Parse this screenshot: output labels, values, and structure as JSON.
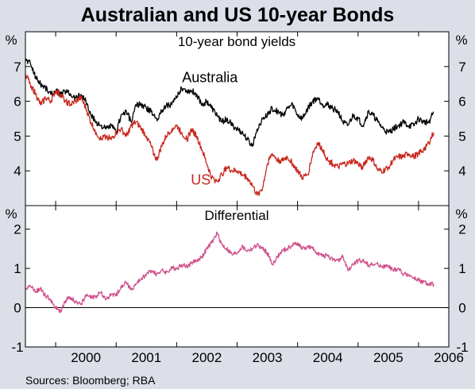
{
  "chart_data": {
    "type": "line",
    "title": "Australian and US 10-year Bonds",
    "source": "Sources: Bloomberg; RBA",
    "x_tick_labels": [
      "2000",
      "2001",
      "2002",
      "2003",
      "2004",
      "2005",
      "2006"
    ],
    "x_range": [
      1999.5,
      2006.5
    ],
    "colors": {
      "australia": "#000000",
      "us": "#c8281e",
      "differential": "#d0508c",
      "frame": "#000000",
      "background": "#ffffff"
    },
    "panels": [
      {
        "title": "10-year bond yields",
        "unit_left": "%",
        "unit_right": "%",
        "ylim": [
          3,
          8
        ],
        "y_ticks": [
          4,
          5,
          6,
          7
        ],
        "series": [
          {
            "name": "Australia",
            "color": "#000000",
            "x": [
              1999.5,
              1999.58,
              1999.67,
              1999.75,
              1999.83,
              1999.92,
              2000.0,
              2000.08,
              2000.17,
              2000.25,
              2000.33,
              2000.42,
              2000.5,
              2000.58,
              2000.67,
              2000.75,
              2000.83,
              2000.92,
              2001.0,
              2001.08,
              2001.17,
              2001.25,
              2001.33,
              2001.42,
              2001.5,
              2001.58,
              2001.67,
              2001.75,
              2001.83,
              2001.92,
              2002.0,
              2002.08,
              2002.17,
              2002.25,
              2002.33,
              2002.42,
              2002.5,
              2002.58,
              2002.67,
              2002.75,
              2002.83,
              2002.92,
              2003.0,
              2003.08,
              2003.17,
              2003.25,
              2003.33,
              2003.42,
              2003.5,
              2003.58,
              2003.67,
              2003.75,
              2003.83,
              2003.92,
              2004.0,
              2004.08,
              2004.17,
              2004.25,
              2004.33,
              2004.42,
              2004.5,
              2004.58,
              2004.67,
              2004.75,
              2004.83,
              2004.92,
              2005.0,
              2005.08,
              2005.17,
              2005.25,
              2005.33,
              2005.42,
              2005.5,
              2005.58,
              2005.67,
              2005.75,
              2005.83,
              2005.92,
              2006.0,
              2006.08,
              2006.17,
              2006.25
            ],
            "y": [
              7.2,
              7.1,
              6.7,
              6.5,
              6.4,
              6.2,
              6.3,
              6.2,
              6.3,
              6.2,
              6.1,
              6.2,
              6.0,
              5.6,
              5.4,
              5.3,
              5.2,
              5.3,
              5.1,
              5.6,
              5.7,
              5.4,
              5.9,
              5.9,
              5.8,
              5.7,
              5.5,
              5.7,
              5.9,
              5.9,
              6.1,
              6.4,
              6.3,
              6.3,
              6.2,
              5.9,
              6.0,
              5.8,
              5.6,
              5.4,
              5.5,
              5.3,
              5.2,
              5.1,
              4.9,
              4.7,
              5.2,
              5.5,
              5.6,
              5.8,
              5.7,
              5.6,
              5.8,
              5.9,
              5.6,
              5.5,
              5.8,
              6.0,
              6.1,
              5.9,
              5.9,
              5.8,
              5.7,
              5.4,
              5.3,
              5.6,
              5.5,
              5.3,
              5.7,
              5.6,
              5.4,
              5.2,
              5.1,
              5.2,
              5.3,
              5.4,
              5.3,
              5.3,
              5.5,
              5.4,
              5.4,
              5.7
            ]
          },
          {
            "name": "US",
            "color": "#c8281e",
            "x": [
              1999.5,
              1999.58,
              1999.67,
              1999.75,
              1999.83,
              1999.92,
              2000.0,
              2000.08,
              2000.17,
              2000.25,
              2000.33,
              2000.42,
              2000.5,
              2000.58,
              2000.67,
              2000.75,
              2000.83,
              2000.92,
              2001.0,
              2001.08,
              2001.17,
              2001.25,
              2001.33,
              2001.42,
              2001.5,
              2001.58,
              2001.67,
              2001.75,
              2001.83,
              2001.92,
              2002.0,
              2002.08,
              2002.17,
              2002.25,
              2002.33,
              2002.42,
              2002.5,
              2002.58,
              2002.67,
              2002.75,
              2002.83,
              2002.92,
              2003.0,
              2003.08,
              2003.17,
              2003.25,
              2003.33,
              2003.42,
              2003.5,
              2003.58,
              2003.67,
              2003.75,
              2003.83,
              2003.92,
              2004.0,
              2004.08,
              2004.17,
              2004.25,
              2004.33,
              2004.42,
              2004.5,
              2004.58,
              2004.67,
              2004.75,
              2004.83,
              2004.92,
              2005.0,
              2005.08,
              2005.17,
              2005.25,
              2005.33,
              2005.42,
              2005.5,
              2005.58,
              2005.67,
              2005.75,
              2005.83,
              2005.92,
              2006.0,
              2006.08,
              2006.17,
              2006.25
            ],
            "y": [
              6.8,
              6.5,
              6.2,
              5.9,
              6.1,
              6.0,
              6.3,
              6.2,
              6.0,
              5.9,
              6.0,
              6.1,
              5.8,
              5.4,
              5.1,
              4.9,
              5.0,
              4.9,
              5.1,
              5.2,
              5.0,
              5.3,
              5.4,
              5.2,
              5.0,
              4.7,
              4.3,
              4.7,
              5.0,
              5.2,
              5.3,
              5.1,
              4.9,
              5.2,
              5.0,
              4.6,
              4.2,
              3.8,
              3.7,
              3.9,
              4.1,
              4.0,
              4.0,
              3.9,
              3.8,
              3.6,
              3.3,
              3.5,
              4.2,
              4.5,
              4.3,
              4.3,
              4.4,
              4.2,
              4.0,
              3.8,
              3.9,
              4.5,
              4.8,
              4.6,
              4.3,
              4.2,
              4.1,
              4.2,
              4.2,
              4.3,
              4.2,
              4.1,
              4.4,
              4.3,
              4.0,
              4.0,
              4.1,
              4.3,
              4.4,
              4.4,
              4.5,
              4.4,
              4.5,
              4.6,
              4.8,
              5.1
            ]
          }
        ]
      },
      {
        "title": "Differential",
        "unit_left": "%",
        "unit_right": "%",
        "ylim": [
          -1,
          2.6
        ],
        "y_ticks": [
          -1,
          0,
          1,
          2
        ],
        "series": [
          {
            "name": "Differential",
            "color": "#d0508c",
            "x": [
              1999.5,
              1999.58,
              1999.67,
              1999.75,
              1999.83,
              1999.92,
              2000.0,
              2000.08,
              2000.17,
              2000.25,
              2000.33,
              2000.42,
              2000.5,
              2000.58,
              2000.67,
              2000.75,
              2000.83,
              2000.92,
              2001.0,
              2001.08,
              2001.17,
              2001.25,
              2001.33,
              2001.42,
              2001.5,
              2001.58,
              2001.67,
              2001.75,
              2001.83,
              2001.92,
              2002.0,
              2002.08,
              2002.17,
              2002.25,
              2002.33,
              2002.42,
              2002.5,
              2002.58,
              2002.67,
              2002.75,
              2002.83,
              2002.92,
              2003.0,
              2003.08,
              2003.17,
              2003.25,
              2003.33,
              2003.42,
              2003.5,
              2003.58,
              2003.67,
              2003.75,
              2003.83,
              2003.92,
              2004.0,
              2004.08,
              2004.17,
              2004.25,
              2004.33,
              2004.42,
              2004.5,
              2004.58,
              2004.67,
              2004.75,
              2004.83,
              2004.92,
              2005.0,
              2005.08,
              2005.17,
              2005.25,
              2005.33,
              2005.42,
              2005.5,
              2005.58,
              2005.67,
              2005.75,
              2005.83,
              2005.92,
              2006.0,
              2006.08,
              2006.17,
              2006.25
            ],
            "y": [
              0.5,
              0.55,
              0.4,
              0.5,
              0.3,
              0.2,
              0.0,
              -0.1,
              0.2,
              0.25,
              0.15,
              0.1,
              0.3,
              0.25,
              0.3,
              0.4,
              0.2,
              0.35,
              0.3,
              0.55,
              0.65,
              0.45,
              0.6,
              0.75,
              0.85,
              0.95,
              0.85,
              0.95,
              0.9,
              1.0,
              1.0,
              1.1,
              1.05,
              1.15,
              1.2,
              1.3,
              1.5,
              1.65,
              1.9,
              1.6,
              1.5,
              1.35,
              1.4,
              1.55,
              1.45,
              1.5,
              1.6,
              1.5,
              1.4,
              1.1,
              1.3,
              1.45,
              1.5,
              1.6,
              1.65,
              1.5,
              1.55,
              1.5,
              1.4,
              1.3,
              1.35,
              1.2,
              1.2,
              1.3,
              0.95,
              1.1,
              1.2,
              1.2,
              1.1,
              1.1,
              1.1,
              1.05,
              1.05,
              0.95,
              1.0,
              0.85,
              0.85,
              0.75,
              0.7,
              0.65,
              0.6,
              0.6
            ]
          }
        ]
      }
    ],
    "annotations": [
      {
        "text": "Australia",
        "series": "Australia",
        "x": 2002.55,
        "y": 6.55
      },
      {
        "text": "US",
        "series": "US",
        "x": 2002.4,
        "y": 3.6
      }
    ]
  }
}
